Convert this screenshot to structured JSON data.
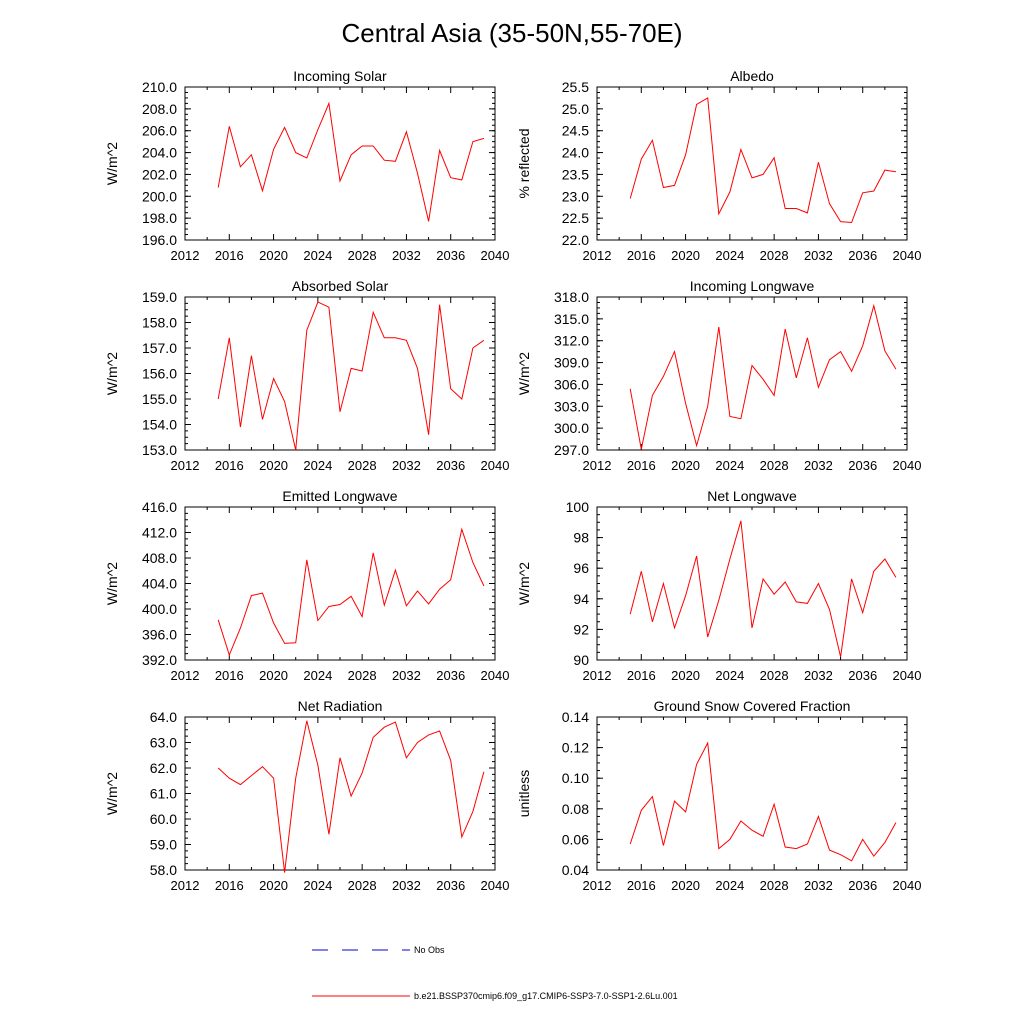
{
  "figure_title": "Central Asia (35-50N,55-70E)",
  "legend": {
    "obs_label": "No Obs",
    "obs_color": "#0000cc",
    "model_label": "b.e21.BSSP370cmip6.f09_g17.CMIP6-SSP3-7.0-SSP1-2.6Lu.001",
    "model_color": "#ff0000"
  },
  "chart_data": [
    {
      "type": "line",
      "title": "Incoming Solar",
      "ylabel": "W/m^2",
      "xlim": [
        2012,
        2040
      ],
      "xticks": [
        2012,
        2016,
        2020,
        2024,
        2028,
        2032,
        2036,
        2040
      ],
      "ylim": [
        196,
        210
      ],
      "yticks": [
        "196.0",
        "198.0",
        "200.0",
        "202.0",
        "204.0",
        "206.0",
        "208.0",
        "210.0"
      ],
      "ytick_step": 2,
      "x": [
        2015,
        2016,
        2017,
        2018,
        2019,
        2020,
        2021,
        2022,
        2023,
        2024,
        2025,
        2026,
        2027,
        2028,
        2029,
        2030,
        2031,
        2032,
        2033,
        2034,
        2035,
        2036,
        2037,
        2038,
        2039
      ],
      "series": [
        {
          "values": [
            200.8,
            206.4,
            202.7,
            203.8,
            200.5,
            204.3,
            206.3,
            204.0,
            203.5,
            206.1,
            208.5,
            201.4,
            203.8,
            204.6,
            204.6,
            203.3,
            203.2,
            205.9,
            202.1,
            197.7,
            204.2,
            201.7,
            201.5,
            205.0,
            205.3
          ]
        }
      ]
    },
    {
      "type": "line",
      "title": "Albedo",
      "ylabel": "% reflected",
      "xlim": [
        2012,
        2040
      ],
      "xticks": [
        2012,
        2016,
        2020,
        2024,
        2028,
        2032,
        2036,
        2040
      ],
      "ylim": [
        22,
        25.5
      ],
      "yticks": [
        "22.0",
        "22.5",
        "23.0",
        "23.5",
        "24.0",
        "24.5",
        "25.0",
        "25.5"
      ],
      "ytick_step": 0.5,
      "x": [
        2015,
        2016,
        2017,
        2018,
        2019,
        2020,
        2021,
        2022,
        2023,
        2024,
        2025,
        2026,
        2027,
        2028,
        2029,
        2030,
        2031,
        2032,
        2033,
        2034,
        2035,
        2036,
        2037,
        2038,
        2039
      ],
      "series": [
        {
          "values": [
            22.95,
            23.85,
            24.28,
            23.2,
            23.25,
            23.95,
            25.1,
            25.25,
            22.6,
            23.1,
            24.07,
            23.42,
            23.5,
            23.88,
            22.72,
            22.72,
            22.62,
            23.78,
            22.83,
            22.42,
            22.4,
            23.08,
            23.12,
            23.6,
            23.56
          ]
        }
      ]
    },
    {
      "type": "line",
      "title": "Absorbed Solar",
      "ylabel": "W/m^2",
      "xlim": [
        2012,
        2040
      ],
      "xticks": [
        2012,
        2016,
        2020,
        2024,
        2028,
        2032,
        2036,
        2040
      ],
      "ylim": [
        153,
        159
      ],
      "yticks": [
        "153.0",
        "154.0",
        "155.0",
        "156.0",
        "157.0",
        "158.0",
        "159.0"
      ],
      "ytick_step": 1,
      "x": [
        2015,
        2016,
        2017,
        2018,
        2019,
        2020,
        2021,
        2022,
        2023,
        2024,
        2025,
        2026,
        2027,
        2028,
        2029,
        2030,
        2031,
        2032,
        2033,
        2034,
        2035,
        2036,
        2037,
        2038,
        2039
      ],
      "series": [
        {
          "values": [
            155.0,
            157.4,
            153.9,
            156.7,
            154.2,
            155.8,
            154.9,
            153.0,
            157.7,
            158.8,
            158.6,
            154.5,
            156.2,
            156.1,
            158.4,
            157.4,
            157.4,
            157.3,
            156.2,
            153.6,
            158.7,
            155.4,
            155.0,
            157.0,
            157.3
          ]
        }
      ]
    },
    {
      "type": "line",
      "title": "Incoming Longwave",
      "ylabel": "W/m^2",
      "xlim": [
        2012,
        2040
      ],
      "xticks": [
        2012,
        2016,
        2020,
        2024,
        2028,
        2032,
        2036,
        2040
      ],
      "ylim": [
        297,
        318
      ],
      "yticks": [
        "297.0",
        "300.0",
        "303.0",
        "306.0",
        "309.0",
        "312.0",
        "315.0",
        "318.0"
      ],
      "ytick_step": 3,
      "x": [
        2015,
        2016,
        2017,
        2018,
        2019,
        2020,
        2021,
        2022,
        2023,
        2024,
        2025,
        2026,
        2027,
        2028,
        2029,
        2030,
        2031,
        2032,
        2033,
        2034,
        2035,
        2036,
        2037,
        2038,
        2039
      ],
      "series": [
        {
          "values": [
            305.4,
            297.1,
            304.5,
            307.1,
            310.5,
            303.4,
            297.6,
            303.0,
            313.9,
            301.6,
            301.3,
            308.6,
            306.7,
            304.5,
            313.6,
            306.9,
            312.4,
            305.6,
            309.4,
            310.5,
            307.8,
            311.3,
            316.8,
            310.6,
            308.1
          ]
        }
      ]
    },
    {
      "type": "line",
      "title": "Emitted Longwave",
      "ylabel": "W/m^2",
      "xlim": [
        2012,
        2040
      ],
      "xticks": [
        2012,
        2016,
        2020,
        2024,
        2028,
        2032,
        2036,
        2040
      ],
      "ylim": [
        392,
        416
      ],
      "yticks": [
        "392.0",
        "396.0",
        "400.0",
        "404.0",
        "408.0",
        "412.0",
        "416.0"
      ],
      "ytick_step": 4,
      "x": [
        2015,
        2016,
        2017,
        2018,
        2019,
        2020,
        2021,
        2022,
        2023,
        2024,
        2025,
        2026,
        2027,
        2028,
        2029,
        2030,
        2031,
        2032,
        2033,
        2034,
        2035,
        2036,
        2037,
        2038,
        2039
      ],
      "series": [
        {
          "values": [
            398.3,
            392.8,
            397.0,
            402.1,
            402.5,
            397.8,
            394.6,
            394.7,
            407.7,
            398.2,
            400.4,
            400.7,
            402.0,
            398.8,
            408.8,
            400.6,
            406.1,
            400.5,
            402.8,
            400.8,
            403.1,
            404.6,
            412.5,
            407.3,
            403.6
          ]
        }
      ]
    },
    {
      "type": "line",
      "title": "Net Longwave",
      "ylabel": "W/m^2",
      "xlim": [
        2012,
        2040
      ],
      "xticks": [
        2012,
        2016,
        2020,
        2024,
        2028,
        2032,
        2036,
        2040
      ],
      "ylim": [
        90,
        100
      ],
      "yticks": [
        "90",
        "92",
        "94",
        "96",
        "98",
        "100"
      ],
      "ytick_step": 2,
      "x": [
        2015,
        2016,
        2017,
        2018,
        2019,
        2020,
        2021,
        2022,
        2023,
        2024,
        2025,
        2026,
        2027,
        2028,
        2029,
        2030,
        2031,
        2032,
        2033,
        2034,
        2035,
        2036,
        2037,
        2038,
        2039
      ],
      "series": [
        {
          "values": [
            93.0,
            95.8,
            92.5,
            95.0,
            92.1,
            94.2,
            96.8,
            91.5,
            93.9,
            96.6,
            99.1,
            92.1,
            95.3,
            94.3,
            95.1,
            93.8,
            93.7,
            95.0,
            93.3,
            90.2,
            95.3,
            93.1,
            95.8,
            96.6,
            95.4
          ]
        }
      ]
    },
    {
      "type": "line",
      "title": "Net Radiation",
      "ylabel": "W/m^2",
      "xlim": [
        2012,
        2040
      ],
      "xticks": [
        2012,
        2016,
        2020,
        2024,
        2028,
        2032,
        2036,
        2040
      ],
      "ylim": [
        58,
        64
      ],
      "yticks": [
        "58.0",
        "59.0",
        "60.0",
        "61.0",
        "62.0",
        "63.0",
        "64.0"
      ],
      "ytick_step": 1,
      "x": [
        2015,
        2016,
        2017,
        2018,
        2019,
        2020,
        2021,
        2022,
        2023,
        2024,
        2025,
        2026,
        2027,
        2028,
        2029,
        2030,
        2031,
        2032,
        2033,
        2034,
        2035,
        2036,
        2037,
        2038,
        2039
      ],
      "series": [
        {
          "values": [
            62.0,
            61.6,
            61.35,
            61.7,
            62.05,
            61.6,
            57.9,
            61.6,
            63.85,
            62.1,
            59.4,
            62.4,
            60.9,
            61.8,
            63.2,
            63.6,
            63.8,
            62.4,
            63.0,
            63.3,
            63.45,
            62.3,
            59.3,
            60.3,
            61.85
          ]
        }
      ]
    },
    {
      "type": "line",
      "title": "Ground Snow Covered Fraction",
      "ylabel": "unitless",
      "xlim": [
        2012,
        2040
      ],
      "xticks": [
        2012,
        2016,
        2020,
        2024,
        2028,
        2032,
        2036,
        2040
      ],
      "ylim": [
        0.04,
        0.14
      ],
      "yticks": [
        "0.04",
        "0.06",
        "0.08",
        "0.10",
        "0.12",
        "0.14"
      ],
      "ytick_step": 0.02,
      "x": [
        2015,
        2016,
        2017,
        2018,
        2019,
        2020,
        2021,
        2022,
        2023,
        2024,
        2025,
        2026,
        2027,
        2028,
        2029,
        2030,
        2031,
        2032,
        2033,
        2034,
        2035,
        2036,
        2037,
        2038,
        2039
      ],
      "series": [
        {
          "values": [
            0.057,
            0.079,
            0.088,
            0.056,
            0.085,
            0.078,
            0.109,
            0.123,
            0.054,
            0.06,
            0.072,
            0.066,
            0.062,
            0.083,
            0.055,
            0.054,
            0.057,
            0.075,
            0.053,
            0.05,
            0.046,
            0.06,
            0.049,
            0.058,
            0.071
          ]
        }
      ]
    }
  ]
}
